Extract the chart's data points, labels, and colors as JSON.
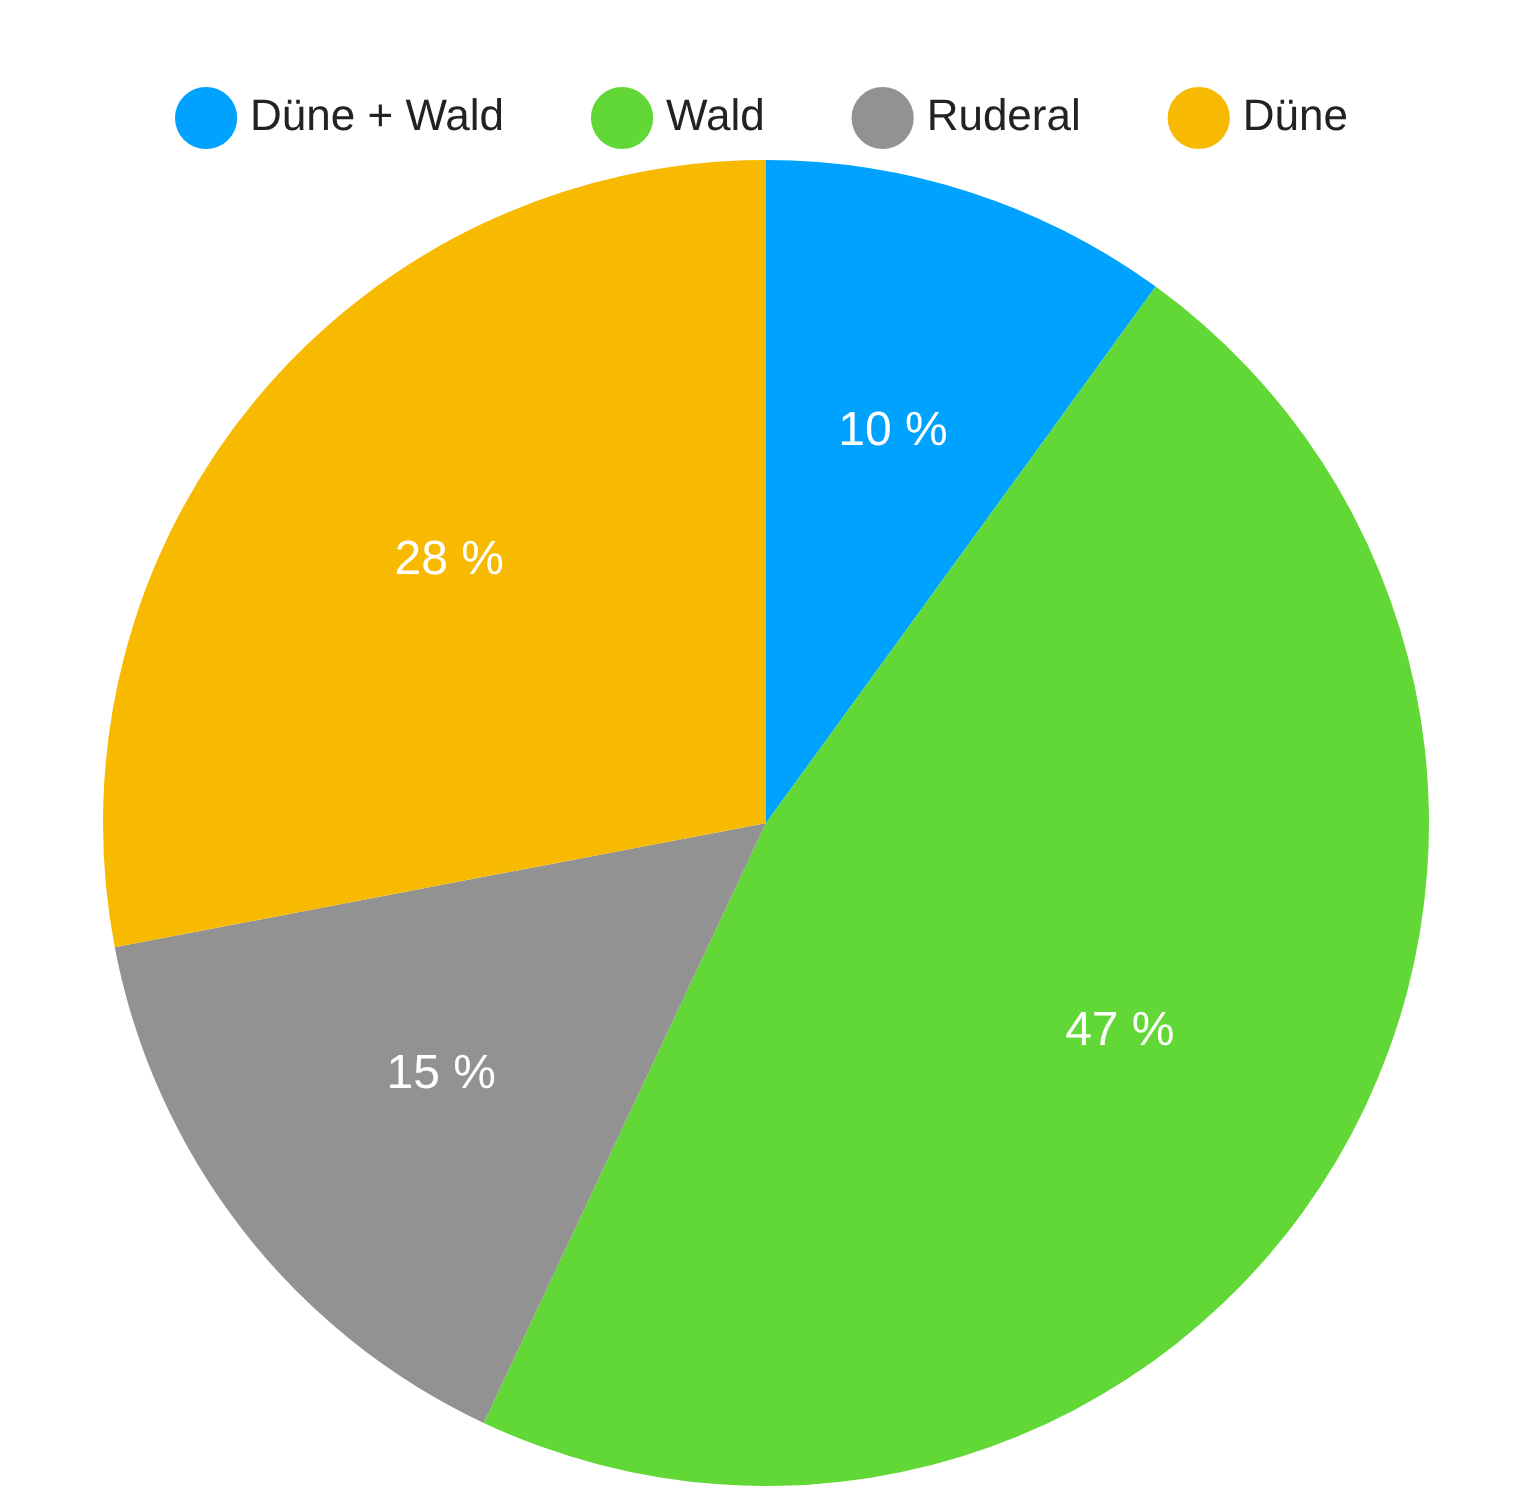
{
  "chart_data": {
    "type": "pie",
    "categories": [
      "Düne + Wald",
      "Wald",
      "Ruderal",
      "Düne"
    ],
    "values": [
      10,
      47,
      15,
      28
    ],
    "colors": [
      "#00a2ff",
      "#61d836",
      "#929292",
      "#f8ba00"
    ],
    "value_labels": [
      "10 %",
      "47 %",
      "15 %",
      "28 %"
    ],
    "legend": "top"
  }
}
